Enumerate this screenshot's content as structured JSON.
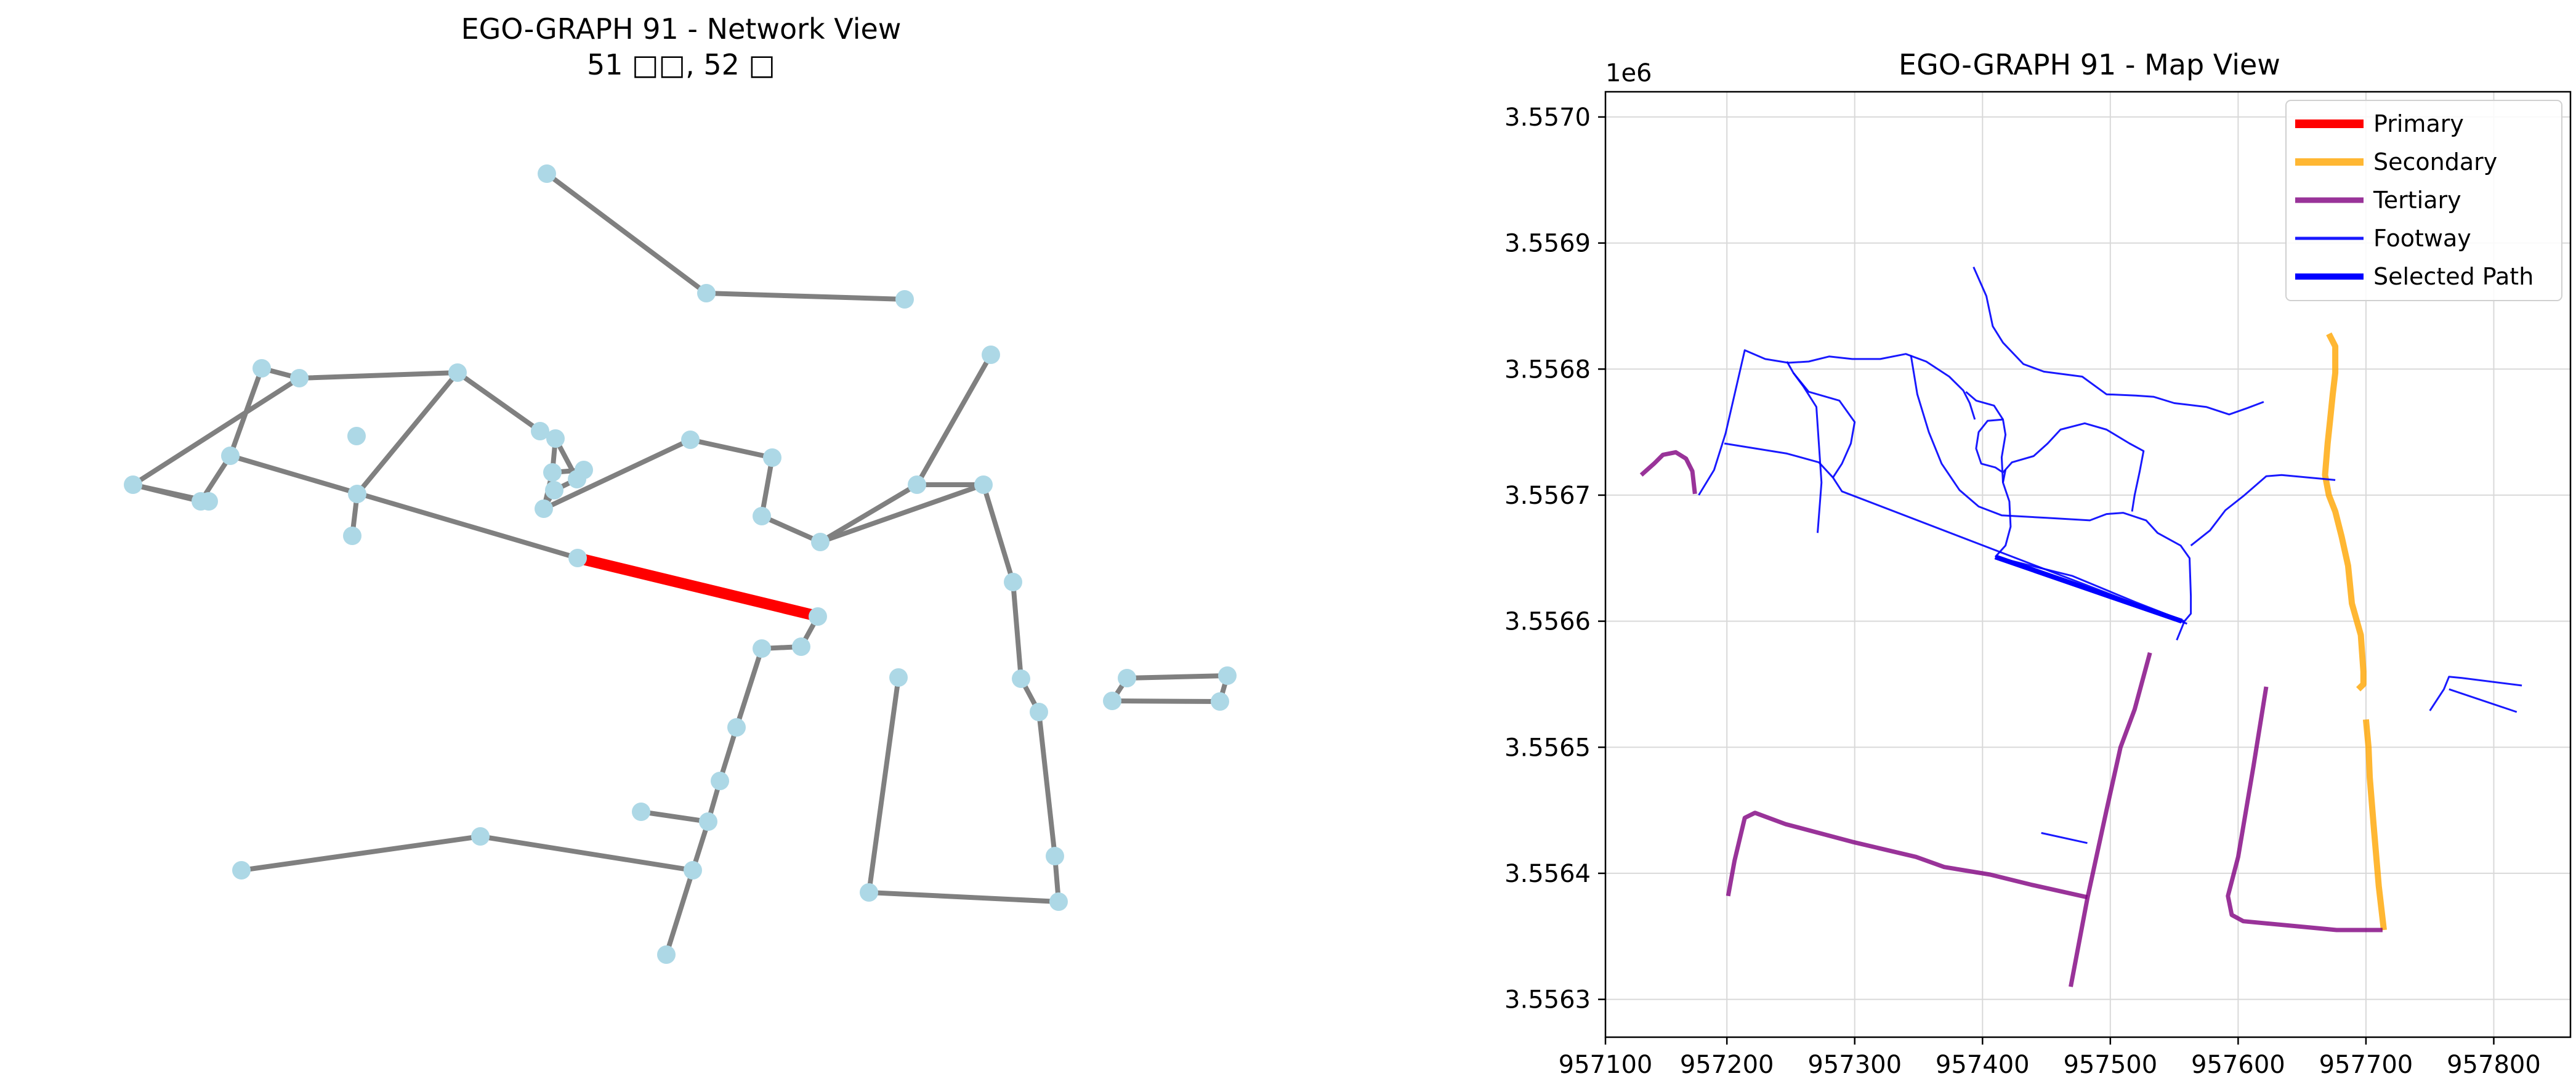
{
  "network_view": {
    "title_line1": "EGO-GRAPH 91 - Network View",
    "title_line2": "51 □□, 52 □",
    "node_color": "#add8e6",
    "edge_color": "#808080",
    "highlight_color": "#ff0000"
  },
  "map_view": {
    "title": "EGO-GRAPH 91 - Map View",
    "offset_label": "1e6",
    "legend": [
      {
        "label": "Primary",
        "color": "#ff0000",
        "style": "primary"
      },
      {
        "label": "Secondary",
        "color": "#ffa500",
        "style": "secondary"
      },
      {
        "label": "Tertiary",
        "color": "#800080",
        "style": "tertiary"
      },
      {
        "label": "Footway",
        "color": "#0000ff",
        "style": "footway"
      },
      {
        "label": "Selected Path",
        "color": "#0000ff",
        "style": "selected"
      }
    ]
  },
  "chart_data": {
    "type": "line",
    "title": "EGO-GRAPH 91 - Map View",
    "xlim": [
      957105,
      957860
    ],
    "ylim": [
      3.55627,
      3.55702
    ],
    "x_ticks": [
      957100,
      957200,
      957300,
      957400,
      957500,
      957600,
      957700,
      957800
    ],
    "x_tick_labels": [
      "957100",
      "957200",
      "957300",
      "957400",
      "957500",
      "957600",
      "957700",
      "957800"
    ],
    "y_ticks": [
      3.5563,
      3.5564,
      3.5565,
      3.5566,
      3.5567,
      3.5568,
      3.5569,
      3.557
    ],
    "y_tick_labels": [
      "3.5563",
      "3.5564",
      "3.5565",
      "3.5566",
      "3.5567",
      "3.5568",
      "3.5569",
      "3.5570"
    ],
    "grid": true,
    "legend_position": "top-right",
    "series": [
      {
        "name": "Secondary",
        "style": "secondary",
        "lines": [
          [
            [
              957671,
              3.556828
            ],
            [
              957676,
              3.556818
            ],
            [
              957676,
              3.556797
            ],
            [
              957674,
              3.55678
            ],
            [
              957672,
              3.55676
            ],
            [
              957670,
              3.556741
            ],
            [
              957668,
              3.556716
            ],
            [
              957671,
              3.5567
            ],
            [
              957676,
              3.556687
            ],
            [
              957681,
              3.556667
            ],
            [
              957686,
              3.556644
            ],
            [
              957689,
              3.556614
            ],
            [
              957696,
              3.556589
            ],
            [
              957698,
              3.55656
            ],
            [
              957698,
              3.55655
            ],
            [
              957694,
              3.556546
            ]
          ],
          [
            [
              957700,
              3.556522
            ],
            [
              957702,
              3.5565
            ],
            [
              957703,
              3.556476
            ],
            [
              957706,
              3.556438
            ],
            [
              957710,
              3.55639
            ],
            [
              957714,
              3.556355
            ]
          ]
        ]
      },
      {
        "name": "Tertiary",
        "style": "tertiary",
        "lines": [
          [
            [
              957133,
              3.556716
            ],
            [
              957143,
              3.556725
            ],
            [
              957150,
              3.556732
            ],
            [
              957160,
              3.556734
            ],
            [
              957168,
              3.556729
            ],
            [
              957173,
              3.556719
            ],
            [
              957175,
              3.556701
            ]
          ],
          [
            [
              957201,
              3.556382
            ],
            [
              957206,
              3.55641
            ],
            [
              957214,
              3.556444
            ],
            [
              957222,
              3.556448
            ],
            [
              957246,
              3.556439
            ],
            [
              957298,
              3.556425
            ],
            [
              957348,
              3.556413
            ],
            [
              957370,
              3.556405
            ],
            [
              957406,
              3.556399
            ],
            [
              957438,
              3.556391
            ],
            [
              957482,
              3.556381
            ]
          ],
          [
            [
              957469,
              3.55631
            ],
            [
              957482,
              3.55638
            ],
            [
              957497,
              3.55645
            ],
            [
              957508,
              3.5565
            ],
            [
              957519,
              3.55653
            ],
            [
              957531,
              3.556575
            ]
          ],
          [
            [
              957622,
              3.556548
            ],
            [
              957612,
              3.556485
            ],
            [
              957600,
              3.556413
            ],
            [
              957592,
              3.556382
            ],
            [
              957595,
              3.556367
            ],
            [
              957604,
              3.556362
            ],
            [
              957656,
              3.556357
            ],
            [
              957677,
              3.556355
            ],
            [
              957713,
              3.556355
            ]
          ]
        ]
      },
      {
        "name": "Footway",
        "style": "footway",
        "lines": [
          [
            [
              957393,
              3.556881
            ],
            [
              957403,
              3.556858
            ],
            [
              957408,
              3.556834
            ],
            [
              957416,
              3.556821
            ],
            [
              957432,
              3.556804
            ],
            [
              957448,
              3.556798
            ],
            [
              957478,
              3.556794
            ],
            [
              957497,
              3.55678
            ],
            [
              957520,
              3.556779
            ],
            [
              957534,
              3.556778
            ],
            [
              957550,
              3.556773
            ],
            [
              957575,
              3.55677
            ],
            [
              957593,
              3.556764
            ],
            [
              957607,
              3.556769
            ],
            [
              957620,
              3.556774
            ]
          ],
          [
            [
              957178,
              3.5567
            ],
            [
              957190,
              3.55672
            ],
            [
              957199,
              3.556749
            ],
            [
              957214,
              3.556815
            ],
            [
              957230,
              3.556808
            ],
            [
              957248,
              3.556805
            ],
            [
              957264,
              3.556806
            ],
            [
              957280,
              3.55681
            ],
            [
              957298,
              3.556808
            ],
            [
              957320,
              3.556808
            ],
            [
              957340,
              3.556812
            ],
            [
              957356,
              3.556806
            ],
            [
              957374,
              3.556794
            ],
            [
              957385,
              3.556783
            ],
            [
              957390,
              3.556773
            ],
            [
              957394,
              3.55676
            ]
          ],
          [
            [
              957198,
              3.556741
            ],
            [
              957247,
              3.556733
            ],
            [
              957272,
              3.556726
            ],
            [
              957283,
              3.556714
            ],
            [
              957290,
              3.556703
            ],
            [
              957560,
              3.556598
            ]
          ],
          [
            [
              957344,
              3.556811
            ],
            [
              957349,
              3.55678
            ],
            [
              957358,
              3.55675
            ],
            [
              957368,
              3.556725
            ],
            [
              957382,
              3.556704
            ],
            [
              957397,
              3.556691
            ],
            [
              957415,
              3.556684
            ],
            [
              957450,
              3.556682
            ],
            [
              957484,
              3.55668
            ],
            [
              957497,
              3.556685
            ],
            [
              957510,
              3.556686
            ],
            [
              957528,
              3.55668
            ],
            [
              957537,
              3.55667
            ],
            [
              957555,
              3.55666
            ],
            [
              957562,
              3.55665
            ],
            [
              957563,
              3.55662
            ],
            [
              957563,
              3.556606
            ],
            [
              957558,
              3.5566
            ],
            [
              957552,
              3.556585
            ]
          ],
          [
            [
              957558,
              3.5566
            ],
            [
              957520,
              3.556615
            ],
            [
              957470,
              3.556636
            ],
            [
              957410,
              3.556651
            ]
          ],
          [
            [
              957410,
              3.556651
            ],
            [
              957418,
              3.55666
            ],
            [
              957422,
              3.556675
            ],
            [
              957421,
              3.556695
            ],
            [
              957416,
              3.55671
            ],
            [
              957418,
              3.55672
            ]
          ],
          [
            [
              957416,
              3.55671
            ],
            [
              957415,
              3.55673
            ],
            [
              957418,
              3.556748
            ],
            [
              957416,
              3.55676
            ],
            [
              957404,
              3.556759
            ],
            [
              957397,
              3.55675
            ],
            [
              957395,
              3.556737
            ],
            [
              957399,
              3.556725
            ],
            [
              957410,
              3.556722
            ],
            [
              957416,
              3.556718
            ],
            [
              957423,
              3.556726
            ],
            [
              957440,
              3.556731
            ],
            [
              957451,
              3.556741
            ],
            [
              957461,
              3.556752
            ],
            [
              957480,
              3.556757
            ],
            [
              957497,
              3.556752
            ],
            [
              957515,
              3.556741
            ],
            [
              957526,
              3.556735
            ],
            [
              957523,
              3.556719
            ],
            [
              957519,
              3.5567
            ],
            [
              957517,
              3.556687
            ]
          ],
          [
            [
              957387,
              3.556782
            ],
            [
              957395,
              3.556775
            ],
            [
              957409,
              3.556771
            ],
            [
              957416,
              3.55676
            ]
          ],
          [
            [
              957271,
              3.55667
            ],
            [
              957274,
              3.55671
            ],
            [
              957270,
              3.55677
            ],
            [
              957260,
              3.556786
            ],
            [
              957252,
              3.556797
            ],
            [
              957247,
              3.556806
            ]
          ],
          [
            [
              957252,
              3.556797
            ],
            [
              957264,
              3.556782
            ],
            [
              957288,
              3.556775
            ],
            [
              957300,
              3.556758
            ],
            [
              957297,
              3.556741
            ],
            [
              957290,
              3.556725
            ],
            [
              957283,
              3.556714
            ]
          ],
          [
            [
              957563,
              3.55666
            ],
            [
              957578,
              3.556672
            ],
            [
              957590,
              3.556688
            ],
            [
              957605,
              3.5567
            ],
            [
              957622,
              3.556715
            ],
            [
              957634,
              3.556716
            ],
            [
              957676,
              3.556712
            ]
          ],
          [
            [
              957446,
              3.556432
            ],
            [
              957482,
              3.556424
            ]
          ],
          [
            [
              957750,
              3.556529
            ],
            [
              957761,
              3.556546
            ],
            [
              957765,
              3.556556
            ],
            [
              957775,
              3.556555
            ],
            [
              957822,
              3.556549
            ]
          ],
          [
            [
              957765,
              3.556546
            ],
            [
              957818,
              3.556528
            ]
          ]
        ]
      },
      {
        "name": "Selected Path",
        "style": "selected",
        "lines": [
          [
            [
              957410,
              3.556651
            ],
            [
              957470,
              3.55663
            ],
            [
              957556,
              3.5566
            ]
          ]
        ]
      }
    ]
  }
}
